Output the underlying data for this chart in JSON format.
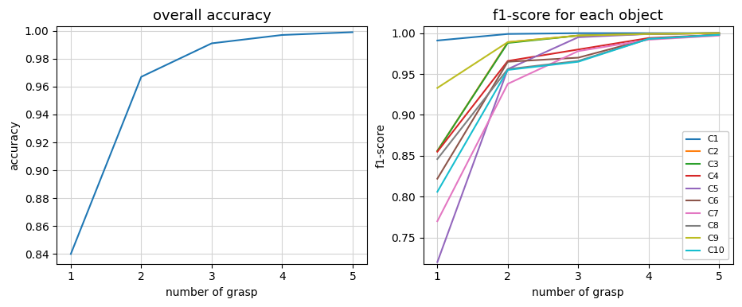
{
  "overall_accuracy": {
    "title": "overall accuracy",
    "x": [
      1,
      2,
      3,
      4,
      5
    ],
    "y": [
      0.84,
      0.967,
      0.991,
      0.997,
      0.999
    ],
    "xlabel": "number of grasp",
    "ylabel": "accuracy",
    "ylim": [
      0.833,
      1.003
    ],
    "yticks": [
      0.84,
      0.86,
      0.88,
      0.9,
      0.92,
      0.94,
      0.96,
      0.98,
      1.0
    ],
    "color": "#1f77b4"
  },
  "f1_score": {
    "title": "f1-score for each object",
    "x": [
      1,
      2,
      3,
      4,
      5
    ],
    "xlabel": "number of grasp",
    "ylabel": "f1-score",
    "ylim": [
      0.718,
      1.008
    ],
    "yticks": [
      0.75,
      0.8,
      0.85,
      0.9,
      0.95,
      1.0
    ],
    "series": {
      "C1": {
        "values": [
          0.991,
          0.999,
          1.0,
          1.0,
          1.0
        ],
        "color": "#1f77b4"
      },
      "C2": {
        "values": [
          0.856,
          0.989,
          0.997,
          0.999,
          1.0
        ],
        "color": "#ff7f0e"
      },
      "C3": {
        "values": [
          0.856,
          0.988,
          0.997,
          0.999,
          1.0
        ],
        "color": "#2ca02c"
      },
      "C4": {
        "values": [
          0.855,
          0.966,
          0.98,
          0.994,
          0.998
        ],
        "color": "#d62728"
      },
      "C5": {
        "values": [
          0.72,
          0.956,
          0.995,
          0.999,
          1.0
        ],
        "color": "#9467bd"
      },
      "C6": {
        "values": [
          0.822,
          0.965,
          0.97,
          0.993,
          0.998
        ],
        "color": "#8c564b"
      },
      "C7": {
        "values": [
          0.77,
          0.938,
          0.978,
          0.992,
          0.997
        ],
        "color": "#e377c2"
      },
      "C8": {
        "values": [
          0.846,
          0.956,
          0.966,
          0.993,
          0.998
        ],
        "color": "#7f7f7f"
      },
      "C9": {
        "values": [
          0.933,
          0.989,
          0.997,
          0.999,
          1.0
        ],
        "color": "#bcbd22"
      },
      "C10": {
        "values": [
          0.806,
          0.955,
          0.965,
          0.993,
          0.998
        ],
        "color": "#17becf"
      }
    }
  }
}
